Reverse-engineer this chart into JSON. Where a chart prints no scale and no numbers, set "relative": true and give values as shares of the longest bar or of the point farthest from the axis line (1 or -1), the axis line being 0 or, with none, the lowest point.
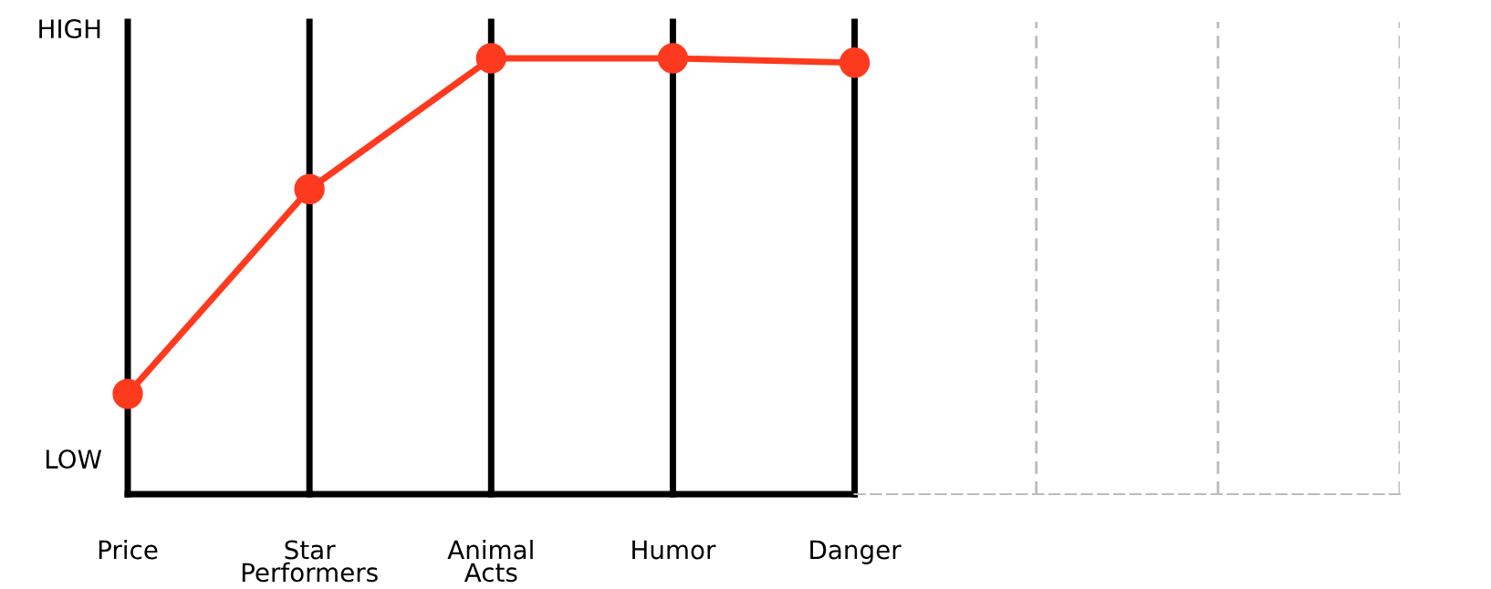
{
  "chart_data": {
    "type": "line",
    "categories": [
      "Price",
      "Star\nPerformers",
      "Animal\nActs",
      "Humor",
      "Danger",
      null,
      null,
      null
    ],
    "series": [
      {
        "color": "#fe3a1e",
        "values": [
          0.23,
          0.7,
          1,
          1,
          0.99,
          null,
          null,
          null
        ]
      }
    ],
    "relative": true,
    "annotations": [
      "HIGH",
      "LOW"
    ],
    "ref_lines": [
      {
        "axis": "y",
        "value": 0,
        "color": "#000000"
      }
    ],
    "grid": "x",
    "marker": "circle",
    "line_style": "solid",
    "legend": false
  }
}
